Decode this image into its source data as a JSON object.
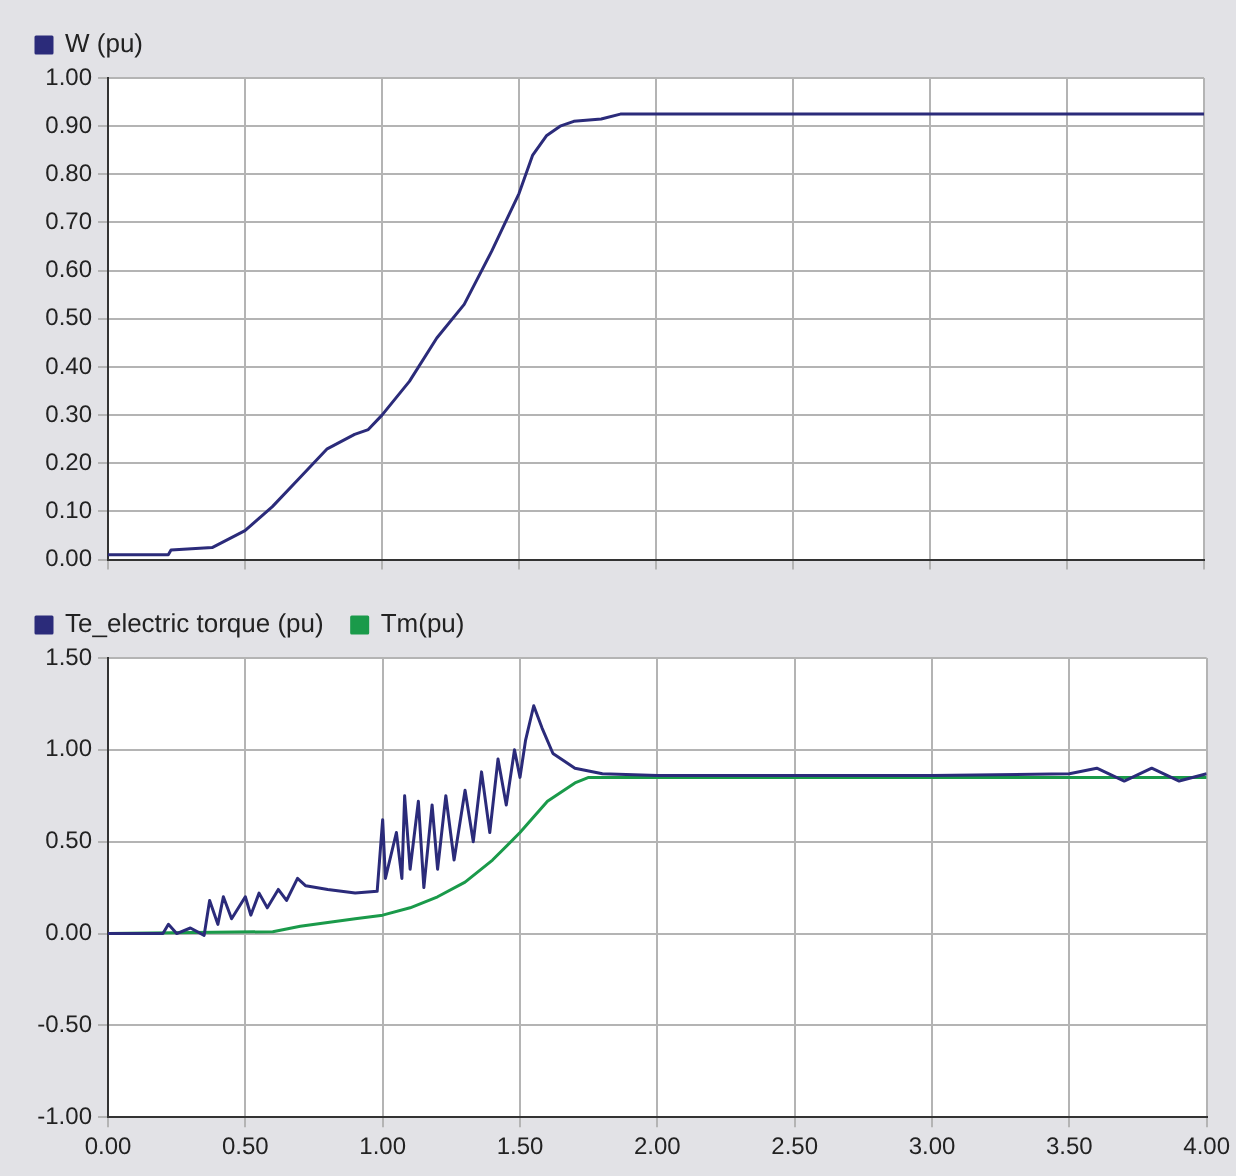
{
  "chart_data": [
    {
      "type": "line",
      "xlim": [
        0,
        4
      ],
      "xticks": [
        {
          "value": 0,
          "label": null
        },
        {
          "value": 0.5,
          "label": null
        },
        {
          "value": 1,
          "label": null
        },
        {
          "value": 1.5,
          "label": null
        },
        {
          "value": 2,
          "label": null
        },
        {
          "value": 2.5,
          "label": null
        },
        {
          "value": 3,
          "label": null
        },
        {
          "value": 3.5,
          "label": null
        },
        {
          "value": 4,
          "label": null
        }
      ],
      "ylim": [
        0,
        1
      ],
      "yticks": [
        {
          "value": 0,
          "label": "0.00"
        },
        {
          "value": 0.1,
          "label": "0.10"
        },
        {
          "value": 0.2,
          "label": "0.20"
        },
        {
          "value": 0.3,
          "label": "0.30"
        },
        {
          "value": 0.4,
          "label": "0.40"
        },
        {
          "value": 0.5,
          "label": "0.50"
        },
        {
          "value": 0.6,
          "label": "0.60"
        },
        {
          "value": 0.7,
          "label": "0.70"
        },
        {
          "value": 0.8,
          "label": "0.80"
        },
        {
          "value": 0.9,
          "label": "0.90"
        },
        {
          "value": 1,
          "label": "1.00"
        }
      ],
      "tick_labels": "y",
      "grid": true,
      "legend": "top left",
      "marker": "none",
      "series": [
        {
          "name": "W (pu)",
          "color": "#2b2b7a",
          "x": [
            0,
            0.22,
            0.23,
            0.38,
            0.5,
            0.6,
            0.7,
            0.8,
            0.9,
            0.95,
            1.0,
            1.1,
            1.2,
            1.3,
            1.4,
            1.5,
            1.55,
            1.6,
            1.65,
            1.7,
            1.8,
            1.87,
            4.0
          ],
          "values": [
            0.01,
            0.01,
            0.02,
            0.025,
            0.06,
            0.11,
            0.17,
            0.23,
            0.26,
            0.27,
            0.3,
            0.37,
            0.46,
            0.53,
            0.64,
            0.76,
            0.84,
            0.88,
            0.9,
            0.91,
            0.915,
            0.925,
            0.925
          ]
        }
      ]
    },
    {
      "type": "line",
      "xlim": [
        0,
        4
      ],
      "xticks": [
        {
          "value": 0,
          "label": "0.00"
        },
        {
          "value": 0.5,
          "label": "0.50"
        },
        {
          "value": 1,
          "label": "1.00"
        },
        {
          "value": 1.5,
          "label": "1.50"
        },
        {
          "value": 2,
          "label": "2.00"
        },
        {
          "value": 2.5,
          "label": "2.50"
        },
        {
          "value": 3,
          "label": "3.00"
        },
        {
          "value": 3.5,
          "label": "3.50"
        },
        {
          "value": 4,
          "label": "4.00"
        }
      ],
      "ylim": [
        -1,
        1.5
      ],
      "yticks": [
        {
          "value": -1,
          "label": "-1.00"
        },
        {
          "value": -0.5,
          "label": "-0.50"
        },
        {
          "value": 0,
          "label": "0.00"
        },
        {
          "value": 0.5,
          "label": "0.50"
        },
        {
          "value": 1,
          "label": "1.00"
        },
        {
          "value": 1.5,
          "label": "1.50"
        }
      ],
      "grid": true,
      "legend": "top",
      "marker": "none",
      "series": [
        {
          "name": "Te_electric torque (pu)",
          "color": "#2b2b7a",
          "x": [
            0,
            0.2,
            0.22,
            0.25,
            0.3,
            0.35,
            0.37,
            0.4,
            0.42,
            0.45,
            0.5,
            0.52,
            0.55,
            0.58,
            0.62,
            0.65,
            0.69,
            0.72,
            0.8,
            0.9,
            0.98,
            1.0,
            1.01,
            1.05,
            1.07,
            1.08,
            1.1,
            1.13,
            1.15,
            1.18,
            1.2,
            1.23,
            1.26,
            1.3,
            1.33,
            1.36,
            1.39,
            1.42,
            1.45,
            1.48,
            1.5,
            1.52,
            1.55,
            1.58,
            1.62,
            1.7,
            1.8,
            2.0,
            2.5,
            3.0,
            3.5,
            3.6,
            3.7,
            3.8,
            3.9,
            4.0
          ],
          "values": [
            0,
            0,
            0.05,
            0,
            0.03,
            -0.01,
            0.18,
            0.05,
            0.2,
            0.08,
            0.2,
            0.1,
            0.22,
            0.14,
            0.24,
            0.18,
            0.3,
            0.26,
            0.24,
            0.22,
            0.23,
            0.62,
            0.3,
            0.55,
            0.3,
            0.75,
            0.35,
            0.72,
            0.25,
            0.7,
            0.35,
            0.75,
            0.4,
            0.78,
            0.5,
            0.88,
            0.55,
            0.95,
            0.7,
            1.0,
            0.85,
            1.05,
            1.24,
            1.12,
            0.98,
            0.9,
            0.87,
            0.86,
            0.86,
            0.86,
            0.87,
            0.9,
            0.83,
            0.9,
            0.83,
            0.87
          ]
        },
        {
          "name": "Tm(pu)",
          "color": "#1a9a4a",
          "x": [
            0,
            0.6,
            0.7,
            0.8,
            0.9,
            1.0,
            1.1,
            1.2,
            1.3,
            1.4,
            1.5,
            1.6,
            1.7,
            1.75,
            4.0
          ],
          "values": [
            0,
            0.01,
            0.04,
            0.06,
            0.08,
            0.1,
            0.14,
            0.2,
            0.28,
            0.4,
            0.55,
            0.72,
            0.82,
            0.85,
            0.85
          ]
        }
      ]
    }
  ]
}
